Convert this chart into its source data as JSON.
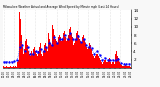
{
  "title": "Milwaukee Weather Actual and Average Wind Speed by Minute mph (Last 24 Hours)",
  "n_points": 144,
  "background_color": "#f8f8f8",
  "plot_bg": "#ffffff",
  "bar_color": "#ff0000",
  "line_color": "#0000ff",
  "grid_color": "#cccccc",
  "ylim": [
    0,
    14
  ],
  "yticks": [
    2,
    4,
    6,
    8,
    10,
    12,
    14
  ],
  "seed": 7,
  "actual": [
    0.5,
    0.3,
    0.2,
    0.4,
    0.3,
    0.2,
    0.5,
    0.3,
    0.4,
    0.2,
    0.3,
    0.4,
    0.2,
    0.5,
    0.3,
    1.0,
    1.5,
    2.0,
    13.5,
    12.0,
    8.0,
    5.0,
    3.5,
    4.5,
    5.5,
    6.5,
    7.0,
    5.5,
    4.0,
    3.5,
    3.0,
    4.0,
    3.5,
    3.0,
    4.5,
    5.0,
    4.0,
    3.5,
    3.0,
    4.0,
    5.0,
    6.0,
    4.5,
    3.5,
    3.0,
    4.0,
    5.5,
    6.0,
    5.0,
    4.0,
    8.5,
    9.0,
    7.0,
    6.0,
    5.5,
    10.5,
    9.5,
    8.0,
    7.0,
    6.5,
    5.5,
    6.0,
    7.5,
    8.0,
    7.5,
    6.5,
    7.0,
    8.5,
    9.0,
    8.5,
    7.5,
    6.5,
    7.0,
    8.0,
    9.5,
    10.0,
    8.5,
    7.5,
    6.5,
    5.5,
    6.0,
    7.0,
    8.5,
    9.0,
    8.0,
    7.0,
    6.5,
    5.5,
    6.0,
    7.5,
    8.0,
    7.0,
    6.0,
    5.0,
    4.5,
    5.0,
    5.5,
    6.0,
    5.5,
    4.5,
    3.5,
    3.0,
    2.5,
    3.0,
    3.5,
    4.0,
    3.5,
    3.0,
    2.5,
    2.0,
    1.5,
    1.0,
    1.5,
    2.0,
    2.5,
    2.0,
    1.5,
    1.5,
    2.0,
    2.5,
    1.5,
    1.0,
    1.5,
    2.0,
    1.5,
    1.0,
    3.5,
    4.0,
    3.0,
    2.5,
    1.5,
    1.0,
    0.5,
    0.8,
    0.5,
    0.4,
    0.5,
    0.6,
    0.5,
    0.4,
    0.5,
    0.3,
    0.4,
    0.3
  ],
  "avg": [
    1.5,
    1.5,
    1.5,
    1.5,
    1.5,
    1.5,
    1.5,
    1.5,
    1.5,
    1.5,
    1.6,
    1.6,
    1.6,
    1.7,
    1.8,
    2.0,
    2.5,
    3.5,
    5.0,
    6.5,
    6.5,
    5.5,
    4.5,
    4.0,
    4.0,
    4.5,
    5.0,
    5.0,
    4.5,
    4.0,
    3.5,
    3.5,
    3.5,
    3.5,
    3.8,
    4.0,
    4.0,
    3.8,
    3.5,
    3.8,
    4.0,
    4.5,
    4.5,
    4.0,
    3.8,
    4.0,
    4.5,
    5.0,
    5.0,
    4.5,
    5.0,
    6.0,
    6.5,
    6.0,
    5.5,
    6.0,
    7.0,
    7.5,
    7.0,
    6.5,
    6.0,
    6.0,
    6.5,
    7.0,
    7.0,
    6.8,
    7.0,
    7.5,
    8.0,
    8.0,
    7.5,
    7.0,
    7.0,
    7.5,
    8.0,
    8.5,
    8.0,
    7.5,
    7.0,
    6.5,
    6.5,
    7.0,
    7.5,
    8.0,
    7.8,
    7.2,
    6.8,
    6.2,
    6.0,
    6.5,
    7.0,
    6.8,
    6.2,
    5.5,
    5.0,
    5.0,
    5.2,
    5.5,
    5.2,
    4.8,
    4.2,
    3.8,
    3.5,
    3.5,
    3.8,
    4.0,
    3.8,
    3.5,
    3.2,
    2.8,
    2.5,
    2.0,
    2.0,
    2.2,
    2.5,
    2.2,
    2.0,
    1.8,
    2.0,
    2.2,
    2.0,
    1.8,
    1.8,
    2.0,
    1.8,
    1.5,
    2.0,
    2.5,
    2.5,
    2.2,
    1.8,
    1.5,
    1.2,
    1.2,
    1.0,
    1.0,
    1.0,
    1.0,
    1.0,
    1.0,
    1.0,
    1.0,
    1.0,
    1.0
  ],
  "n_xticks": 25,
  "figsize": [
    1.6,
    0.87
  ],
  "dpi": 100
}
